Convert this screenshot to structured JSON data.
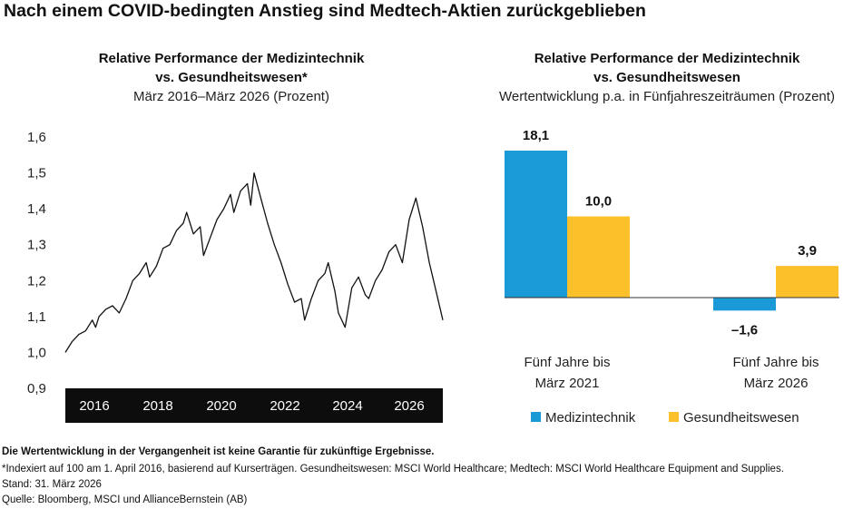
{
  "title": "Nach einem COVID-bedingten Anstieg sind Medtech-Aktien zurückgeblieben",
  "left_panel": {
    "title_line1": "Relative Performance der Medizintechnik",
    "title_line2": "vs. Gesundheitswesen*",
    "subtitle": "März 2016–März 2026 (Prozent)"
  },
  "right_panel": {
    "title_line1": "Relative Performance der Medizintechnik",
    "title_line2": "vs. Gesundheitswesen",
    "subtitle": "Wertentwicklung p.a. in Fünfjahreszeiträumen (Prozent)"
  },
  "chart_data": [
    {
      "type": "line",
      "ylim": [
        0.9,
        1.6
      ],
      "y_ticks": [
        "1,6",
        "1,5",
        "1,4",
        "1,3",
        "1,2",
        "1,1",
        "1,0",
        "0,9"
      ],
      "x_tick_labels": [
        "2016",
        "2018",
        "2020",
        "2022",
        "2024",
        "2026"
      ],
      "grid": false,
      "x_range": [
        2016.0,
        2027.2
      ],
      "series": [
        {
          "color": "#111111",
          "x": [
            2016.0,
            2016.2,
            2016.4,
            2016.6,
            2016.8,
            2016.9,
            2017.0,
            2017.2,
            2017.4,
            2017.6,
            2017.8,
            2018.0,
            2018.2,
            2018.4,
            2018.5,
            2018.7,
            2018.9,
            2019.1,
            2019.3,
            2019.5,
            2019.6,
            2019.8,
            2020.0,
            2020.1,
            2020.3,
            2020.5,
            2020.7,
            2020.9,
            2021.0,
            2021.2,
            2021.4,
            2021.5,
            2021.6,
            2021.8,
            2022.0,
            2022.2,
            2022.4,
            2022.6,
            2022.8,
            2023.0,
            2023.1,
            2023.3,
            2023.5,
            2023.7,
            2023.8,
            2024.0,
            2024.1,
            2024.3,
            2024.5,
            2024.7,
            2024.9,
            2025.0,
            2025.2,
            2025.4,
            2025.6,
            2025.8,
            2026.0,
            2026.2,
            2026.4,
            2026.6,
            2026.8,
            2027.0,
            2027.2
          ],
          "values": [
            1.0,
            1.03,
            1.05,
            1.06,
            1.09,
            1.07,
            1.1,
            1.12,
            1.13,
            1.11,
            1.15,
            1.2,
            1.22,
            1.25,
            1.21,
            1.24,
            1.29,
            1.3,
            1.34,
            1.36,
            1.39,
            1.33,
            1.35,
            1.27,
            1.32,
            1.37,
            1.4,
            1.44,
            1.39,
            1.45,
            1.47,
            1.41,
            1.5,
            1.43,
            1.36,
            1.3,
            1.25,
            1.19,
            1.14,
            1.15,
            1.09,
            1.15,
            1.2,
            1.22,
            1.25,
            1.17,
            1.11,
            1.07,
            1.18,
            1.21,
            1.16,
            1.15,
            1.2,
            1.23,
            1.28,
            1.3,
            1.25,
            1.37,
            1.43,
            1.35,
            1.25,
            1.17,
            1.09
          ]
        }
      ]
    },
    {
      "type": "bar",
      "categories": [
        "Fünf Jahre bis\nMärz 2021",
        "Fünf Jahre bis\nMärz 2026"
      ],
      "category_lines": [
        [
          "Fünf Jahre bis",
          "März 2021"
        ],
        [
          "Fünf Jahre bis",
          "März 2026"
        ]
      ],
      "series": [
        {
          "name": "Medizintechnik",
          "values": [
            18.1,
            -1.6
          ],
          "labels": [
            "18,1",
            "–1,6"
          ],
          "color": "#1a9ad6"
        },
        {
          "name": "Gesundheitswesen",
          "values": [
            10.0,
            3.9
          ],
          "labels": [
            "10,0",
            "3,9"
          ],
          "color": "#fcc02b"
        }
      ],
      "legend": "bottom"
    }
  ],
  "footnotes": {
    "disclaimer": "Die Wertentwicklung in der Vergangenheit ist keine Garantie für zukünftige Ergebnisse.",
    "index_note": "*Indexiert auf 100 am 1. April 2016, basierend auf Kurserträgen. Gesundheitswesen: MSCI World Healthcare; Medtech: MSCI World Healthcare Equipment and Supplies.",
    "as_of": "Stand: 31. März 2026",
    "source": "Quelle: Bloomberg, MSCI und AllianceBernstein (AB)"
  }
}
